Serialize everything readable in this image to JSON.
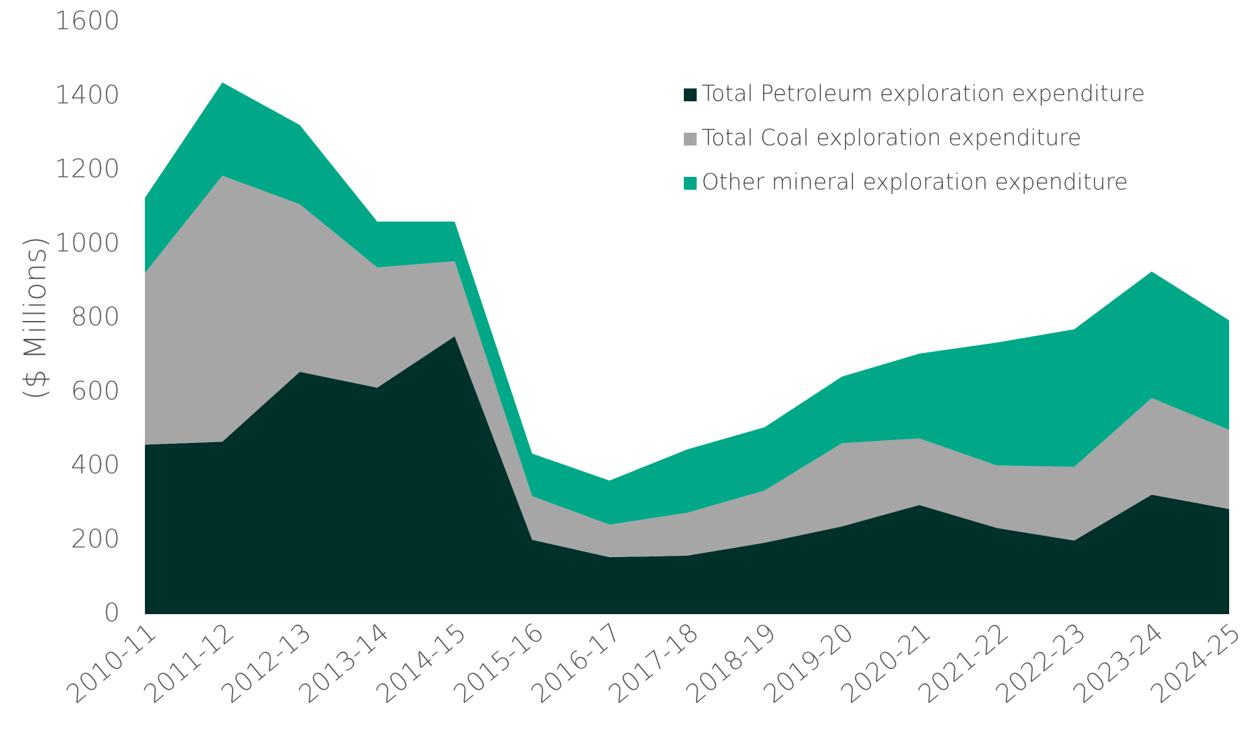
{
  "chart_data": {
    "type": "stacked_area",
    "y_label": "($ Millions)",
    "categories": [
      "2010-11",
      "2011-12",
      "2012-13",
      "2013-14",
      "2014-15",
      "2015-16",
      "2016-17",
      "2017-18",
      "2018-19",
      "2019-20",
      "2020-21",
      "2021-22",
      "2022-23",
      "2023-24",
      "2024-25"
    ],
    "series": [
      {
        "name": "Total Petroleum exploration expenditure",
        "color": "#00302a",
        "values": [
          458,
          466,
          655,
          612,
          751,
          201,
          154,
          158,
          193,
          237,
          295,
          233,
          199,
          323,
          284
        ]
      },
      {
        "name": "Total Coal exploration expenditure",
        "color": "#a6a6a6",
        "values": [
          464,
          719,
          453,
          325,
          203,
          118,
          88,
          116,
          141,
          225,
          180,
          169,
          199,
          261,
          214
        ]
      },
      {
        "name": "Other mineral exploration expenditure",
        "color": "#00a887",
        "values": [
          203,
          252,
          214,
          124,
          107,
          115,
          119,
          171,
          171,
          180,
          229,
          332,
          372,
          342,
          296
        ]
      }
    ],
    "ylim": [
      0,
      1600
    ],
    "yticks": [
      0,
      200,
      400,
      600,
      800,
      1000,
      1200,
      1400,
      1600
    ],
    "grid": false,
    "legend": "top-right"
  }
}
